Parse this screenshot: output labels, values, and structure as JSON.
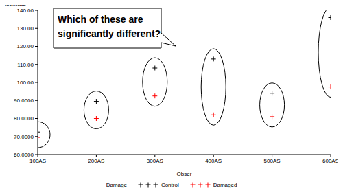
{
  "chart_data": {
    "type": "scatter",
    "y_label": "Estimate",
    "x_label": "Obser",
    "categories": [
      "100AS",
      "200AS",
      "300AS",
      "400AS",
      "500AS",
      "600AS"
    ],
    "series": [
      {
        "name": "Control",
        "color": "#000000",
        "marker": "plus",
        "values": [
          72.5,
          89.5,
          108,
          113,
          94,
          136
        ]
      },
      {
        "name": "Damaged",
        "color": "#ff0000",
        "marker": "plus",
        "values": [
          69.5,
          80,
          92.5,
          82,
          81,
          97.5
        ]
      }
    ],
    "ylim": [
      60,
      140
    ],
    "yticks": [
      {
        "value": 60,
        "label": "60.0000"
      },
      {
        "value": 70,
        "label": "70.0000"
      },
      {
        "value": 80,
        "label": "80.0000"
      },
      {
        "value": 90,
        "label": "90.0000"
      },
      {
        "value": 100,
        "label": "100.00"
      },
      {
        "value": 110,
        "label": "110.00"
      },
      {
        "value": 120,
        "label": "120.00"
      },
      {
        "value": 130,
        "label": "130.00"
      },
      {
        "value": 140,
        "label": "140.00"
      }
    ],
    "legend": "bottom",
    "legend_title": "Damage",
    "annotation": "Which of these are\nsignificantly different?"
  }
}
